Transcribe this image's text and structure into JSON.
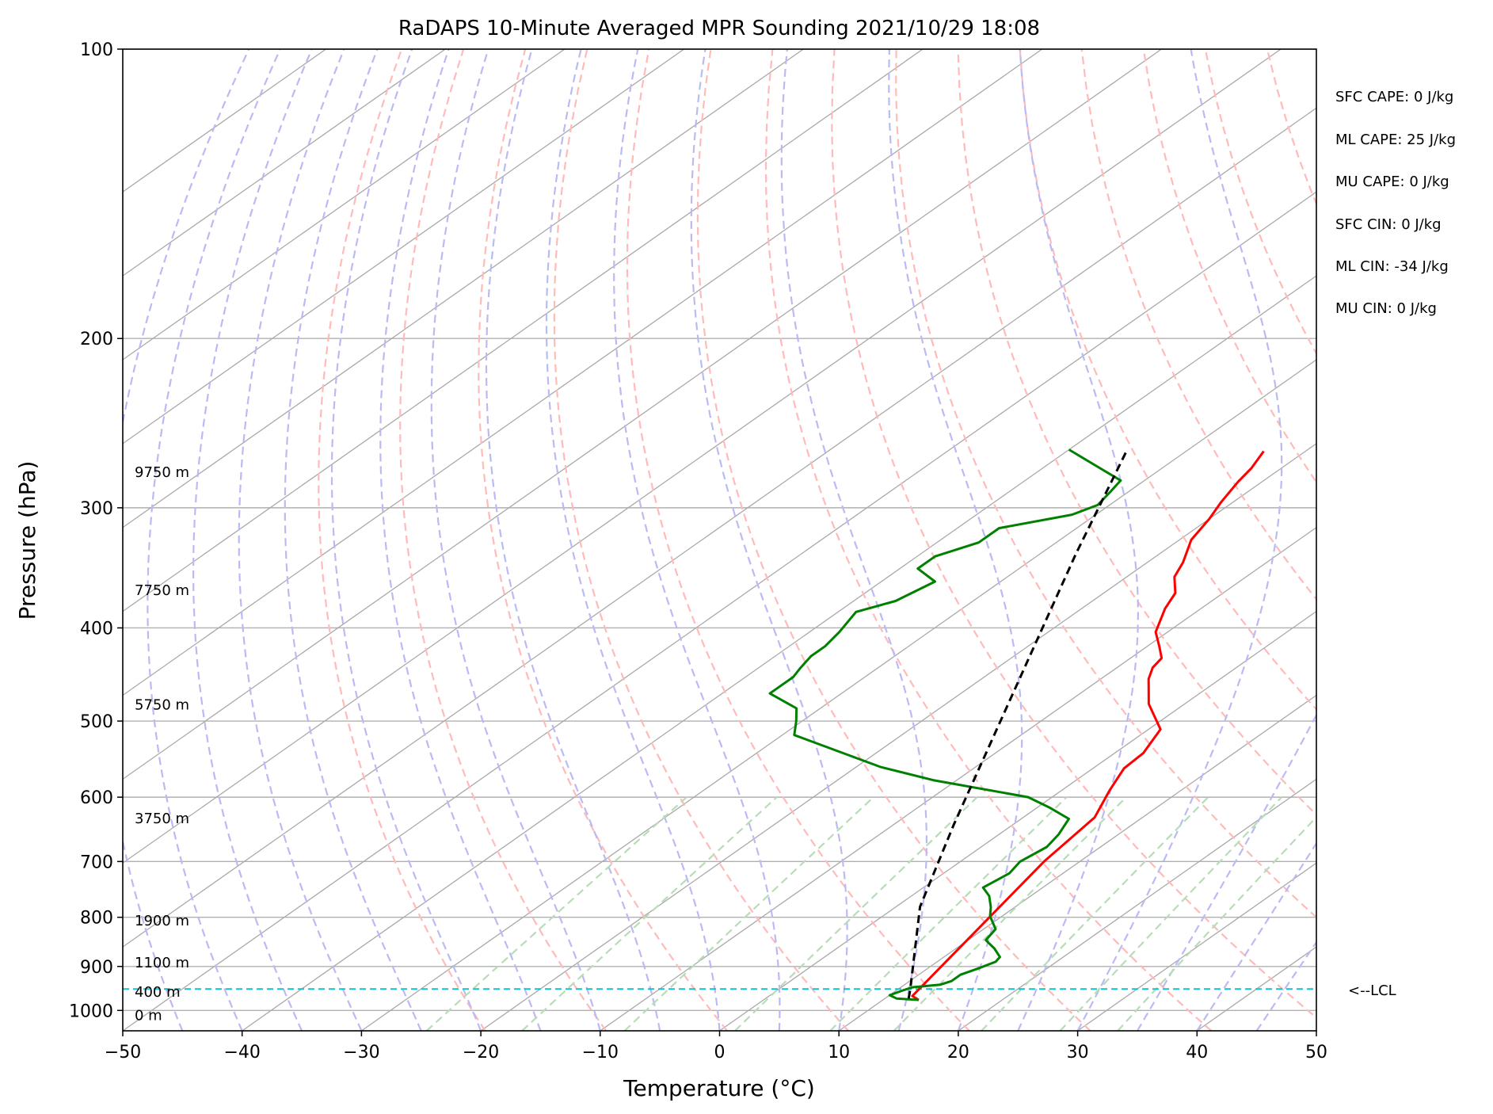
{
  "chart_data": {
    "type": "line",
    "title": "RaDAPS 10-Minute Averaged MPR Sounding 2021/10/29 18:08",
    "xlabel": "Temperature (°C)",
    "ylabel": "Pressure (hPa)",
    "xlim": [
      -50,
      50
    ],
    "ylim": [
      1050,
      100
    ],
    "yscale": "log",
    "x_ticks": [
      -50,
      -40,
      -30,
      -20,
      -10,
      0,
      10,
      20,
      30,
      40,
      50
    ],
    "x_tick_labels": [
      "−50",
      "−40",
      "−30",
      "−20",
      "−10",
      "0",
      "10",
      "20",
      "30",
      "40",
      "50"
    ],
    "y_ticks": [
      100,
      200,
      300,
      400,
      500,
      600,
      700,
      800,
      900,
      1000
    ],
    "y_tick_labels": [
      "100",
      "200",
      "300",
      "400",
      "500",
      "600",
      "700",
      "800",
      "900",
      "1000"
    ],
    "grid": true,
    "background_lines": {
      "isotherms_color": "#a9a9a9",
      "dry_adiabats_color": "#ffbaba",
      "moist_adiabats_color": "#babaf5",
      "mixing_ratio_color": "#b8dcb8",
      "theta_K": [
        250,
        260,
        270,
        280,
        290,
        300,
        310,
        320,
        330,
        340,
        350,
        360,
        370,
        380,
        390,
        400,
        410,
        420,
        430,
        440,
        450
      ],
      "moist_surface_T": [
        -45,
        -40,
        -35,
        -30,
        -25,
        -20,
        -15,
        -10,
        -5,
        0,
        5,
        10,
        15,
        20,
        25,
        30,
        35,
        40,
        45
      ],
      "mixing_ratio_gkg": [
        0.5,
        1,
        2,
        4,
        7,
        10,
        16,
        24,
        32
      ]
    },
    "series": [
      {
        "color": "#ff0000",
        "points": [
          [
            13,
            975
          ],
          [
            12,
            966
          ],
          [
            7,
            700
          ],
          [
            6,
            630
          ],
          [
            4,
            590
          ],
          [
            2.6,
            560
          ],
          [
            2.4,
            540
          ],
          [
            1,
            510
          ],
          [
            -3,
            480
          ],
          [
            -6,
            452
          ],
          [
            -7,
            440
          ],
          [
            -7.4,
            430
          ],
          [
            -9,
            418
          ],
          [
            -11,
            404
          ],
          [
            -13,
            382
          ],
          [
            -14,
            368
          ],
          [
            -16,
            354
          ],
          [
            -17,
            342
          ],
          [
            -19,
            324
          ],
          [
            -20,
            308
          ],
          [
            -21,
            296
          ],
          [
            -22,
            282
          ],
          [
            -22.5,
            273
          ],
          [
            -23.5,
            262
          ]
        ]
      },
      {
        "color": "#008000",
        "points": [
          [
            13,
            975
          ],
          [
            11,
            972
          ],
          [
            10,
            964
          ],
          [
            10.6,
            952
          ],
          [
            11,
            946
          ],
          [
            13,
            940
          ],
          [
            13.5,
            932
          ],
          [
            13.5,
            918
          ],
          [
            14.2,
            905
          ],
          [
            14.9,
            890
          ],
          [
            14.7,
            880
          ],
          [
            13.2,
            862
          ],
          [
            12,
            850
          ],
          [
            11.5,
            845
          ],
          [
            11,
            823
          ],
          [
            9,
            798
          ],
          [
            8,
            781
          ],
          [
            6.5,
            760
          ],
          [
            5,
            745
          ],
          [
            5.5,
            720
          ],
          [
            5,
            700
          ],
          [
            5.5,
            676
          ],
          [
            5,
            656
          ],
          [
            4,
            632
          ],
          [
            1,
            615
          ],
          [
            -2,
            600
          ],
          [
            -12,
            576
          ],
          [
            -18,
            558
          ],
          [
            -29,
            517
          ],
          [
            -30.5,
            500
          ],
          [
            -32,
            485
          ],
          [
            -36,
            468
          ],
          [
            -36,
            458
          ],
          [
            -36,
            450
          ],
          [
            -36.5,
            440
          ],
          [
            -37,
            428
          ],
          [
            -37,
            418
          ],
          [
            -37.5,
            404
          ],
          [
            -38.5,
            385
          ],
          [
            -36.5,
            375
          ],
          [
            -35.5,
            358
          ],
          [
            -38.5,
            347
          ],
          [
            -38.5,
            337
          ],
          [
            -36.5,
            326
          ],
          [
            -36.5,
            315
          ],
          [
            -32,
            305
          ],
          [
            -31,
            298
          ],
          [
            -31.5,
            289
          ],
          [
            -32,
            281
          ],
          [
            -40,
            261
          ]
        ]
      },
      {
        "color": "#000000",
        "dash": true,
        "points": [
          [
            12,
            972
          ],
          [
            11,
            950
          ],
          [
            2,
            780
          ],
          [
            -5,
            640
          ],
          [
            -27,
            335
          ],
          [
            -35,
            262
          ]
        ]
      }
    ],
    "lcl_hpa": 950,
    "lcl_color": "#17becf",
    "lcl_label": "<--LCL",
    "height_labels": [
      {
        "p": 1010,
        "label": "0 m"
      },
      {
        "p": 955,
        "label": "400 m"
      },
      {
        "p": 890,
        "label": "1100 m"
      },
      {
        "p": 805,
        "label": "1900 m"
      },
      {
        "p": 630,
        "label": "3750 m"
      },
      {
        "p": 480,
        "label": "5750 m"
      },
      {
        "p": 365,
        "label": "7750 m"
      },
      {
        "p": 275,
        "label": "9750 m"
      }
    ],
    "annotations": [
      "SFC CAPE: 0 J/kg",
      "ML CAPE: 25 J/kg",
      "MU CAPE: 0 J/kg",
      "SFC CIN: 0 J/kg",
      "ML CIN: -34 J/kg",
      "MU CIN: 0 J/kg"
    ]
  }
}
